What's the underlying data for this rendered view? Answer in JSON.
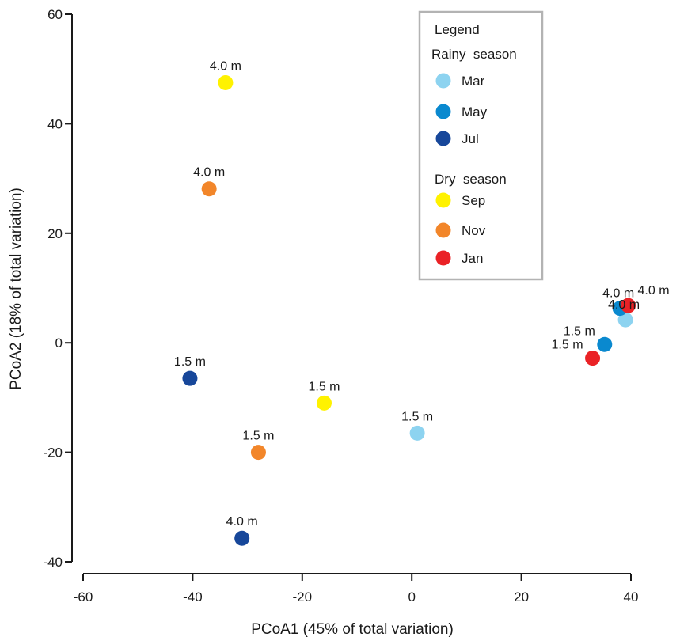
{
  "chart_data": {
    "type": "scatter",
    "xlabel": "PCoA1 (45% of total variation)",
    "ylabel": "PCoA2 (18% of total variation)",
    "xlim": [
      -60,
      40
    ],
    "ylim": [
      -40,
      60
    ],
    "x_ticks": [
      -60,
      -40,
      -20,
      0,
      20,
      40
    ],
    "y_ticks": [
      -40,
      -20,
      0,
      20,
      40,
      60
    ],
    "grid": false,
    "legend": {
      "title": "Legend",
      "position": "top-right",
      "groups": [
        {
          "title": "Rainy  season",
          "entries": [
            {
              "label": "Mar",
              "color": "#8dd3f0"
            },
            {
              "label": "May",
              "color": "#0a89cf"
            },
            {
              "label": "Jul",
              "color": "#17479a"
            }
          ]
        },
        {
          "title": "Dry  season",
          "entries": [
            {
              "label": "Sep",
              "color": "#fff200"
            },
            {
              "label": "Nov",
              "color": "#f2862a"
            },
            {
              "label": "Jan",
              "color": "#ea2226"
            }
          ]
        }
      ]
    },
    "series": [
      {
        "name": "Mar",
        "color": "#8dd3f0",
        "points": [
          {
            "x": 1,
            "y": -16.5,
            "label": "1.5 m"
          },
          {
            "x": 39,
            "y": 4.2,
            "label": "4.0 m"
          }
        ]
      },
      {
        "name": "May",
        "color": "#0a89cf",
        "points": [
          {
            "x": 35.2,
            "y": -0.3,
            "label": "1.5 m"
          },
          {
            "x": 38,
            "y": 6.3,
            "label": "4.0 m"
          }
        ]
      },
      {
        "name": "Jul",
        "color": "#17479a",
        "points": [
          {
            "x": -40.5,
            "y": -6.5,
            "label": "1.5 m"
          },
          {
            "x": -31,
            "y": -35.7,
            "label": "4.0 m"
          }
        ]
      },
      {
        "name": "Sep",
        "color": "#fff200",
        "points": [
          {
            "x": -16,
            "y": -11,
            "label": "1.5 m"
          },
          {
            "x": -34,
            "y": 47.5,
            "label": "4.0 m"
          }
        ]
      },
      {
        "name": "Nov",
        "color": "#f2862a",
        "points": [
          {
            "x": -28,
            "y": -20,
            "label": "1.5 m"
          },
          {
            "x": -37,
            "y": 28.1,
            "label": "4.0 m"
          }
        ]
      },
      {
        "name": "Jan",
        "color": "#ea2226",
        "points": [
          {
            "x": 33,
            "y": -2.8,
            "label": "1.5 m"
          },
          {
            "x": 39.5,
            "y": 6.8,
            "label": "4.0 m"
          }
        ]
      }
    ]
  }
}
